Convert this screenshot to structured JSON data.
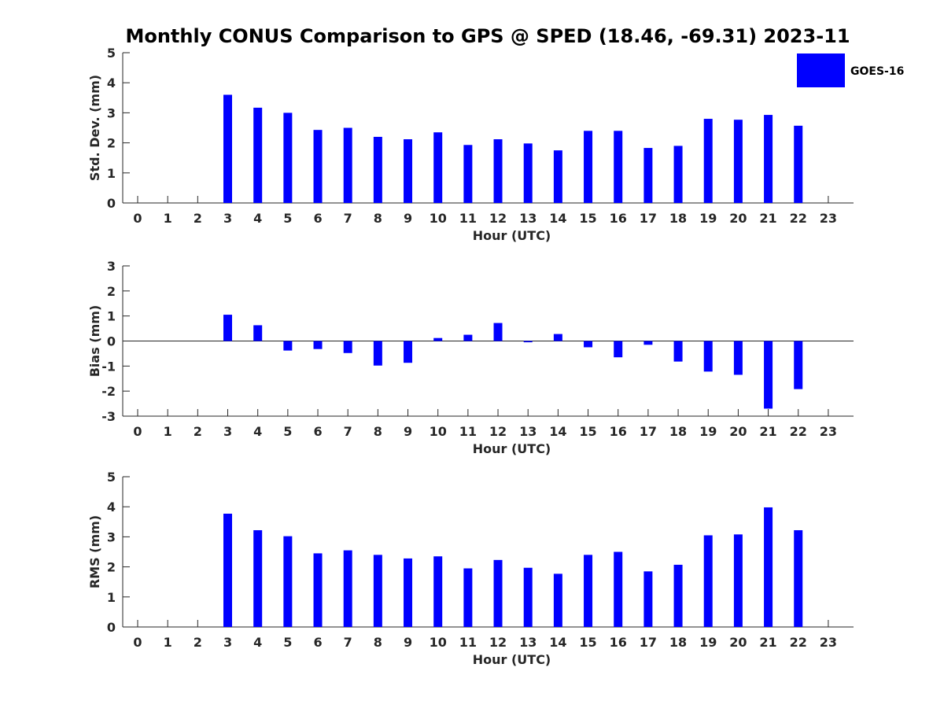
{
  "chart_data": {
    "title": "Monthly CONUS Comparison to GPS @ SPED (18.46, -69.31) 2023-11",
    "legend": {
      "label": "GOES-16",
      "color": "#0000ff",
      "position": "top-right"
    },
    "bar_color": "#0000ff",
    "panels": [
      {
        "type": "bar",
        "ylabel": "Std. Dev. (mm)",
        "xlabel": "Hour (UTC)",
        "ylim": [
          0,
          5
        ],
        "yticks": [
          0,
          1,
          2,
          3,
          4,
          5
        ],
        "categories": [
          "0",
          "1",
          "2",
          "3",
          "4",
          "5",
          "6",
          "7",
          "8",
          "9",
          "10",
          "11",
          "12",
          "13",
          "14",
          "15",
          "16",
          "17",
          "18",
          "19",
          "20",
          "21",
          "22",
          "23"
        ],
        "values": [
          null,
          null,
          null,
          3.6,
          3.17,
          3.0,
          2.43,
          2.5,
          2.2,
          2.12,
          2.35,
          1.93,
          2.12,
          1.98,
          1.75,
          2.4,
          2.4,
          1.83,
          1.9,
          2.8,
          2.77,
          2.93,
          2.57,
          null
        ]
      },
      {
        "type": "bar",
        "ylabel": "Bias (mm)",
        "xlabel": "Hour (UTC)",
        "ylim": [
          -3,
          3
        ],
        "yticks": [
          -3,
          -2,
          -1,
          0,
          1,
          2,
          3
        ],
        "zero_line": true,
        "categories": [
          "0",
          "1",
          "2",
          "3",
          "4",
          "5",
          "6",
          "7",
          "8",
          "9",
          "10",
          "11",
          "12",
          "13",
          "14",
          "15",
          "16",
          "17",
          "18",
          "19",
          "20",
          "21",
          "22",
          "23"
        ],
        "values": [
          null,
          null,
          null,
          1.05,
          0.63,
          -0.38,
          -0.32,
          -0.48,
          -0.98,
          -0.87,
          0.12,
          0.25,
          0.72,
          -0.05,
          0.28,
          -0.25,
          -0.65,
          -0.15,
          -0.82,
          -1.22,
          -1.35,
          -2.7,
          -1.92,
          null
        ]
      },
      {
        "type": "bar",
        "ylabel": "RMS (mm)",
        "xlabel": "Hour (UTC)",
        "ylim": [
          0,
          5
        ],
        "yticks": [
          0,
          1,
          2,
          3,
          4,
          5
        ],
        "categories": [
          "0",
          "1",
          "2",
          "3",
          "4",
          "5",
          "6",
          "7",
          "8",
          "9",
          "10",
          "11",
          "12",
          "13",
          "14",
          "15",
          "16",
          "17",
          "18",
          "19",
          "20",
          "21",
          "22",
          "23"
        ],
        "values": [
          null,
          null,
          null,
          3.77,
          3.22,
          3.02,
          2.45,
          2.55,
          2.4,
          2.28,
          2.35,
          1.95,
          2.23,
          1.97,
          1.77,
          2.4,
          2.5,
          1.85,
          2.07,
          3.05,
          3.08,
          3.98,
          3.22,
          null
        ]
      }
    ]
  }
}
